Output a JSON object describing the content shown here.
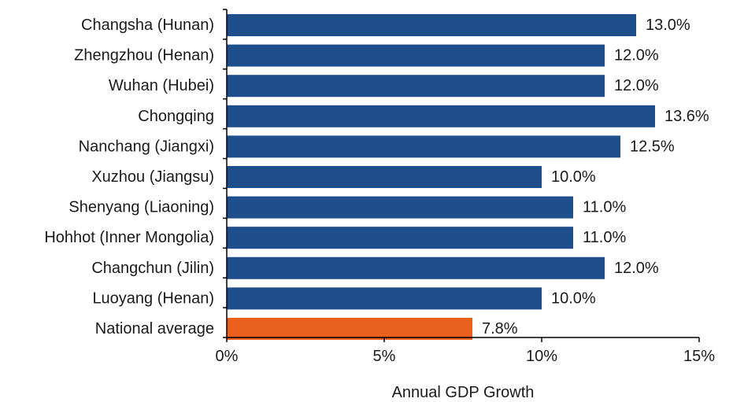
{
  "chart_data": {
    "type": "bar",
    "orientation": "horizontal",
    "categories": [
      "Changsha (Hunan)",
      "Zhengzhou (Henan)",
      "Wuhan (Hubei)",
      "Chongqing",
      "Nanchang (Jiangxi)",
      "Xuzhou (Jiangsu)",
      "Shenyang (Liaoning)",
      "Hohhot (Inner Mongolia)",
      "Changchun (Jilin)",
      "Luoyang (Henan)",
      "National average"
    ],
    "values": [
      13.0,
      12.0,
      12.0,
      13.6,
      12.5,
      10.0,
      11.0,
      11.0,
      12.0,
      10.0,
      7.8
    ],
    "value_labels": [
      "13.0%",
      "12.0%",
      "12.0%",
      "13.6%",
      "12.5%",
      "10.0%",
      "11.0%",
      "11.0%",
      "12.0%",
      "10.0%",
      "7.8%"
    ],
    "bar_colors": [
      "#1f4e8c",
      "#1f4e8c",
      "#1f4e8c",
      "#1f4e8c",
      "#1f4e8c",
      "#1f4e8c",
      "#1f4e8c",
      "#1f4e8c",
      "#1f4e8c",
      "#1f4e8c",
      "#e8601c"
    ],
    "xlim": [
      0,
      15
    ],
    "xticks": [
      0,
      5,
      10,
      15
    ],
    "xtick_labels": [
      "0%",
      "5%",
      "10%",
      "15%"
    ],
    "xlabel": "Annual GDP Growth",
    "ylabel": "",
    "title": "",
    "grid": false,
    "legend": "none"
  }
}
